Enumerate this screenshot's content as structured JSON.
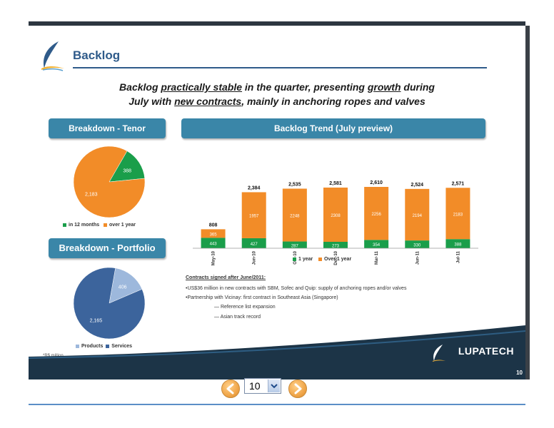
{
  "slide": {
    "title": "Backlog",
    "headline": {
      "line1_a": "Backlog ",
      "line1_u1": "practically stable",
      "line1_b": " in the quarter, presenting ",
      "line1_u2": "growth",
      "line1_c": " during",
      "line2_a": "July with ",
      "line2_u": "new contracts",
      "line2_b": ", mainly in anchoring ropes and valves"
    },
    "tenor_title": "Breakdown - Tenor",
    "portfolio_title": "Breakdown - Portfolio",
    "trend_title": "Backlog Trend (July preview)",
    "tenor_pie": {
      "slices": [
        {
          "label": "in 12 months",
          "value": 388,
          "display": "388",
          "color": "#1a9e4a"
        },
        {
          "label": "over 1 year",
          "value": 2183,
          "display": "2,183",
          "color": "#f28c28"
        }
      ]
    },
    "portfolio_pie": {
      "slices": [
        {
          "label": "Products",
          "value": 406,
          "display": "406",
          "color": "#9db8dc"
        },
        {
          "label": "Services",
          "value": 2165,
          "display": "2,165",
          "color": "#3c649c"
        }
      ]
    },
    "trend": {
      "categories": [
        "May-10",
        "Jun-10",
        "Oct-10",
        "Dec-10",
        "Mar-11",
        "Jun-11",
        "Jul-11"
      ],
      "totals": [
        "808",
        "2,384",
        "2,535",
        "2,581",
        "2,610",
        "2,524",
        "2,571"
      ],
      "total_values": [
        808,
        2384,
        2535,
        2581,
        2610,
        2524,
        2571
      ],
      "one_year": [
        443,
        427,
        287,
        273,
        354,
        330,
        388
      ],
      "over_one_year": [
        365,
        1957,
        2248,
        2308,
        2256,
        2194,
        2183
      ],
      "legend": [
        "1 year",
        "Over 1 year"
      ],
      "colors": {
        "one_year": "#1a9e4a",
        "over_one_year": "#f28c28"
      }
    },
    "contracts": {
      "heading": "Contracts signed after June/2011:",
      "bullet1": "US$36 million in new contracts with SBM, Sofec and Quip: supply of anchoring ropes and/or valves",
      "bullet2": "Partnership with Vicinay: first contract in Southeast Asia (Singapore)",
      "sub1": "Reference list expansion",
      "sub2": "Asian track record"
    },
    "footnote": "*R$ million",
    "brand": "LUPATECH",
    "page_number": "10"
  },
  "nav": {
    "current_page": "10",
    "prev_icon": "arrow-left-icon",
    "next_icon": "arrow-right-icon"
  }
}
